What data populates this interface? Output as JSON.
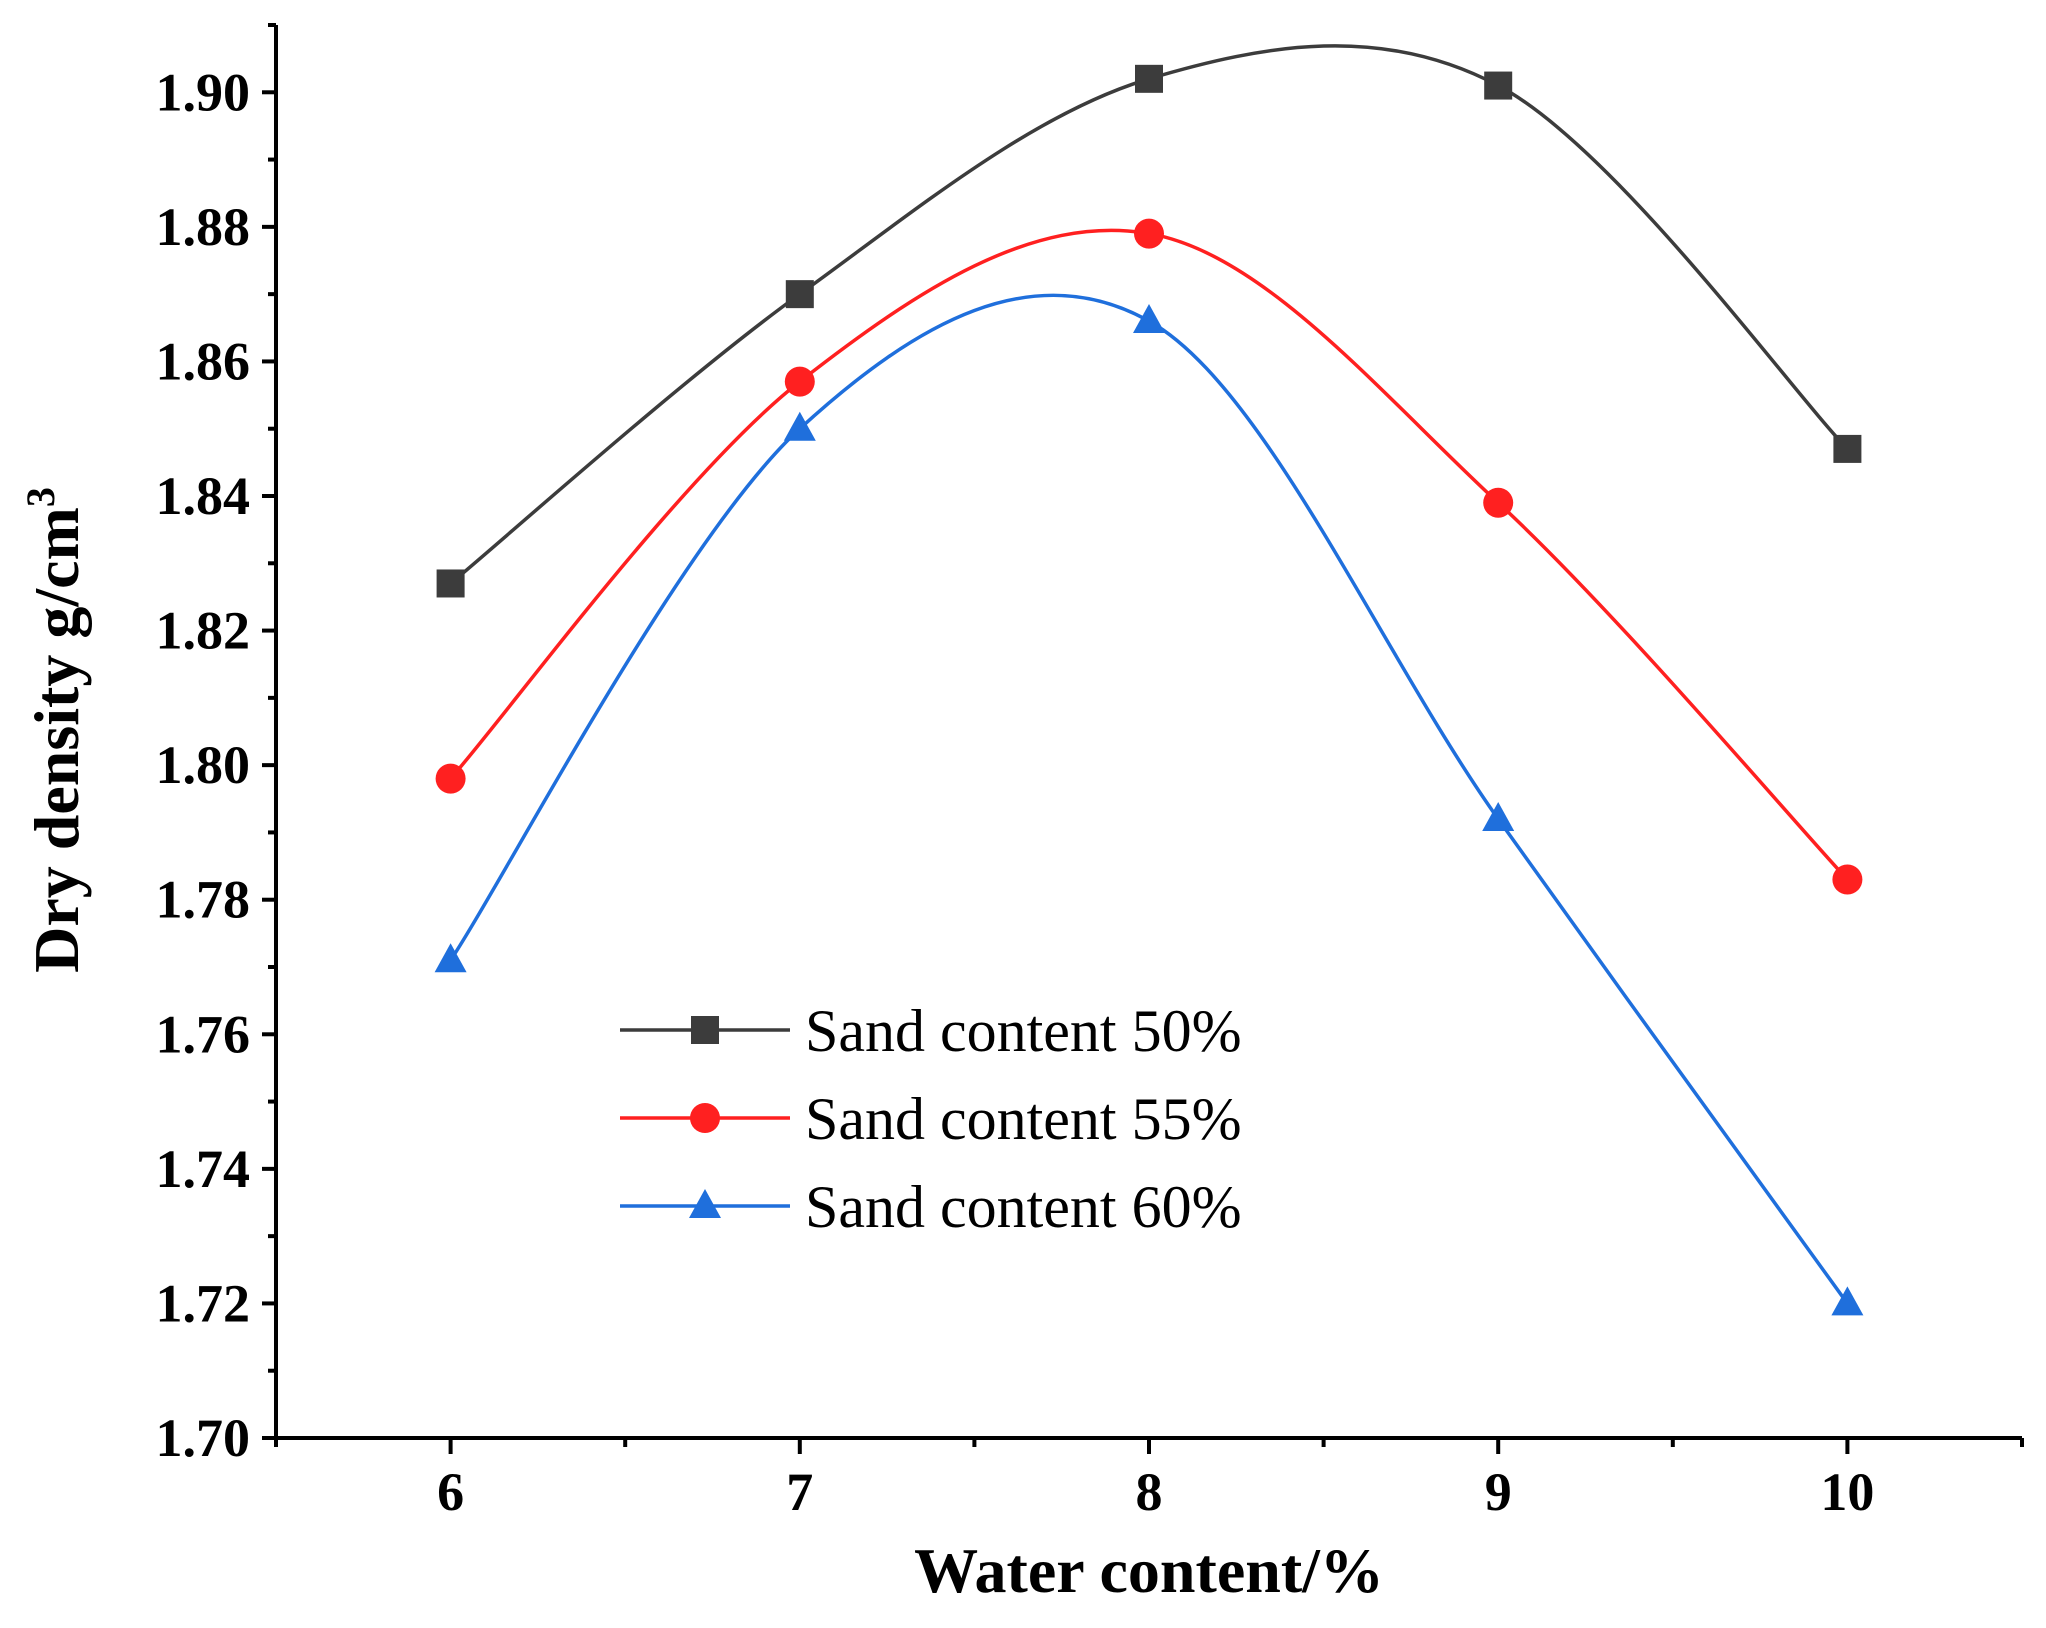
{
  "chart_data": {
    "type": "line",
    "title": "",
    "xlabel": "Water content/%",
    "ylabel": "Dry density g/cm",
    "ylabel_superscript": "3",
    "x": [
      6,
      7,
      8,
      9,
      10
    ],
    "x_ticks": [
      "6",
      "7",
      "8",
      "9",
      "10"
    ],
    "xlim": [
      5.5,
      10.5
    ],
    "ylim": [
      1.7,
      1.91
    ],
    "y_ticks": [
      "1.70",
      "1.72",
      "1.74",
      "1.76",
      "1.78",
      "1.80",
      "1.82",
      "1.84",
      "1.86",
      "1.88",
      "1.90"
    ],
    "grid": false,
    "legend_position": "center-left",
    "smooth": true,
    "series": [
      {
        "name": "Sand content 50%",
        "values": [
          1.827,
          1.87,
          1.902,
          1.901,
          1.847
        ],
        "color": "#3c3c3c",
        "marker": "square"
      },
      {
        "name": "Sand content 55%",
        "values": [
          1.798,
          1.857,
          1.879,
          1.839,
          1.783
        ],
        "color": "#ff2020",
        "marker": "circle"
      },
      {
        "name": "Sand content 60%",
        "values": [
          1.771,
          1.85,
          1.866,
          1.792,
          1.72
        ],
        "color": "#1f6fdc",
        "marker": "triangle"
      }
    ]
  }
}
